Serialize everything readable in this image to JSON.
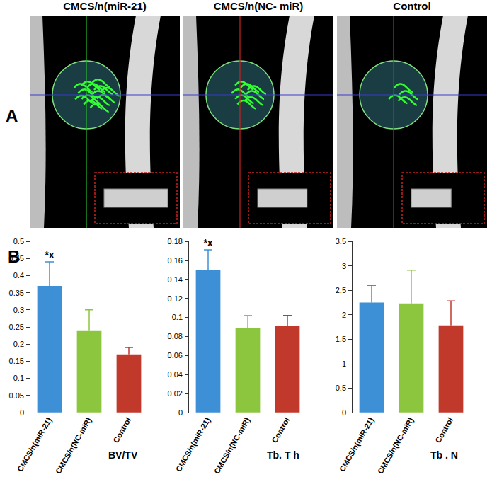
{
  "panel_a": {
    "label": "A",
    "images": [
      "CMCS/n(miR-21)",
      "CMCS/n(NC- miR)",
      "Control"
    ]
  },
  "panel_b": {
    "label": "B"
  },
  "chart_data": [
    {
      "type": "bar",
      "title": "BV/TV",
      "categories": [
        "CMCS/n(miR-21)",
        "CMCS/n(NC-miR)",
        "Control"
      ],
      "values": [
        0.37,
        0.24,
        0.17
      ],
      "errors": [
        0.07,
        0.06,
        0.02
      ],
      "colors": [
        "#3d8fd6",
        "#8cc63f",
        "#c0392b"
      ],
      "ylim": [
        0,
        0.5
      ],
      "yticks": [
        0,
        0.05,
        0.1,
        0.15,
        0.2,
        0.25,
        0.3,
        0.35,
        0.4,
        0.45,
        0.5
      ],
      "annotations": [
        {
          "category": "CMCS/n(miR-21)",
          "text": "*x"
        }
      ]
    },
    {
      "type": "bar",
      "title": "Tb. T h",
      "categories": [
        "CMCS/n(miR-21)",
        "CMCS/n(NC-miR)",
        "Control"
      ],
      "values": [
        0.15,
        0.089,
        0.091
      ],
      "errors": [
        0.021,
        0.013,
        0.011
      ],
      "colors": [
        "#3d8fd6",
        "#8cc63f",
        "#c0392b"
      ],
      "ylim": [
        0,
        0.18
      ],
      "yticks": [
        0,
        0.02,
        0.04,
        0.06,
        0.08,
        0.1,
        0.12,
        0.14,
        0.16,
        0.18
      ],
      "annotations": [
        {
          "category": "CMCS/n(miR-21)",
          "text": "*x"
        }
      ]
    },
    {
      "type": "bar",
      "title": "Tb . N",
      "categories": [
        "CMCS/n(miR-21)",
        "CMCS/n(NC-miR)",
        "Control"
      ],
      "values": [
        2.25,
        2.23,
        1.78
      ],
      "errors": [
        0.35,
        0.68,
        0.5
      ],
      "colors": [
        "#3d8fd6",
        "#8cc63f",
        "#c0392b"
      ],
      "ylim": [
        0,
        3.5
      ],
      "yticks": [
        0,
        0.5,
        1,
        1.5,
        2,
        2.5,
        3,
        3.5
      ],
      "annotations": []
    }
  ]
}
